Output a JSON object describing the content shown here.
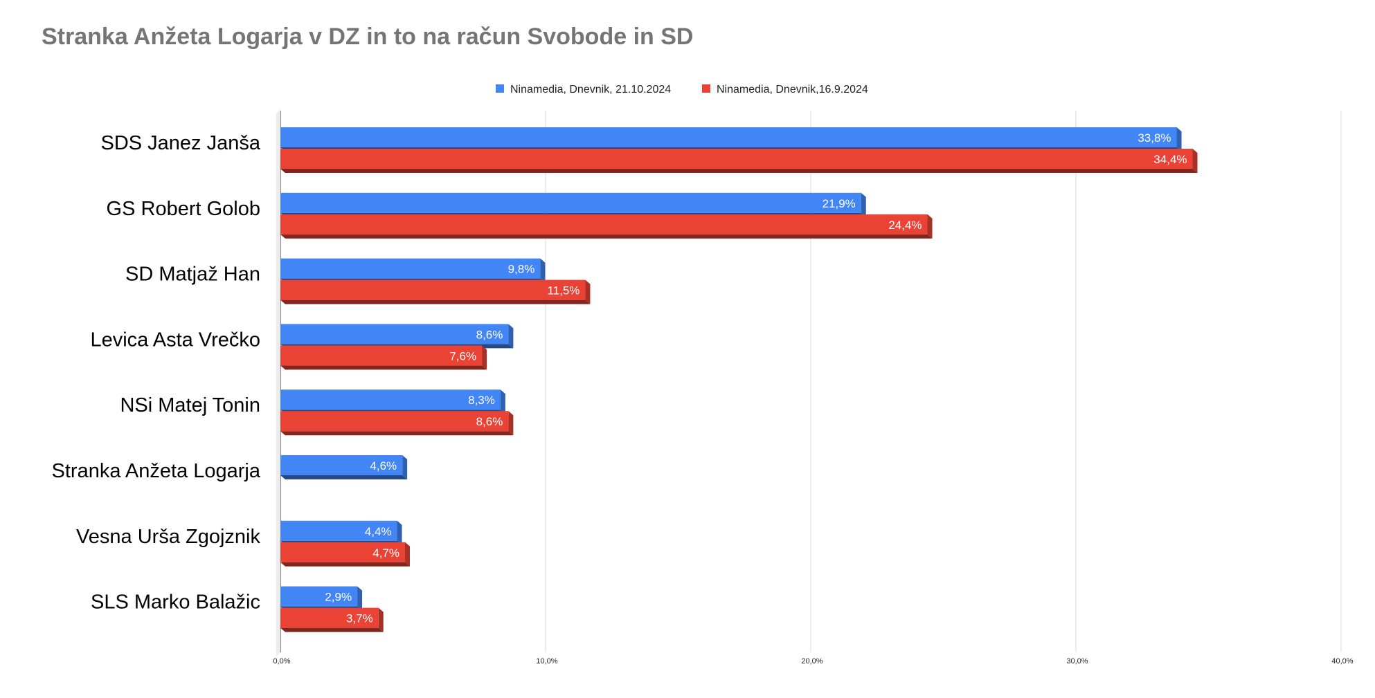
{
  "chart_data": {
    "type": "bar",
    "orientation": "horizontal",
    "title": "Stranka Anžeta Logarja v DZ in to na račun Svobode in SD",
    "xlabel": "",
    "ylabel": "",
    "xlim": [
      0,
      40
    ],
    "grid": true,
    "legend_position": "top-center",
    "categories": [
      "SDS Janez Janša",
      "GS Robert Golob",
      "SD Matjaž Han",
      "Levica  Asta Vrečko",
      "NSi Matej Tonin",
      "Stranka Anžeta Logarja",
      "Vesna Urša Zgojznik",
      "SLS Marko Balažic"
    ],
    "series": [
      {
        "name": "Ninamedia, Dnevnik, 21.10.2024",
        "color": "#4285f4",
        "values": [
          33.8,
          21.9,
          9.8,
          8.6,
          8.3,
          4.6,
          4.4,
          2.9
        ],
        "labels": [
          "33,8%",
          "21,9%",
          "9,8%",
          "8,6%",
          "8,3%",
          "4,6%",
          "4,4%",
          "2,9%"
        ]
      },
      {
        "name": "Ninamedia, Dnevnik,16.9.2024",
        "color": "#ea4335",
        "values": [
          34.4,
          24.4,
          11.5,
          7.6,
          8.6,
          null,
          4.7,
          3.7
        ],
        "labels": [
          "34,4%",
          "24,4%",
          "11,5%",
          "7,6%",
          "8,6%",
          "",
          "4,7%",
          "3,7%"
        ]
      }
    ],
    "ticks": [
      0,
      10,
      20,
      30,
      40
    ],
    "tick_labels": [
      "0,0%",
      "10,0%",
      "20,0%",
      "30,0%",
      "40,0%"
    ]
  }
}
